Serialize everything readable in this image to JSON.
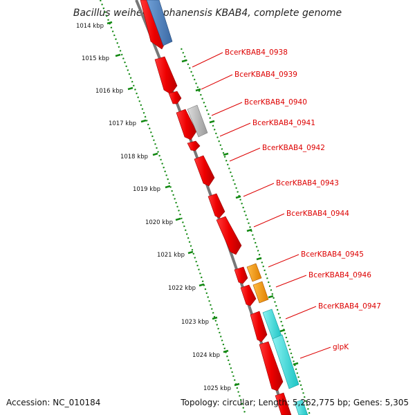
{
  "title": "Bacillus weihenstephanensis KBAB4, complete genome",
  "footer": {
    "accession": "Accession: NC_010184",
    "summary": "Topology: circular; Length: 5,262,775 bp; Genes: 5,305"
  },
  "ticks": [
    "1014 kbp",
    "1015 kbp",
    "1016 kbp",
    "1017 kbp",
    "1018 kbp",
    "1019 kbp",
    "1020 kbp",
    "1021 kbp",
    "1022 kbp",
    "1023 kbp",
    "1024 kbp",
    "1025 kbp"
  ],
  "genes": [
    "BcerKBAB4_0938",
    "BcerKBAB4_0939",
    "BcerKBAB4_0940",
    "BcerKBAB4_0941",
    "BcerKBAB4_0942",
    "BcerKBAB4_0943",
    "BcerKBAB4_0944",
    "BcerKBAB4_0945",
    "BcerKBAB4_0946",
    "BcerKBAB4_0947",
    "glpK"
  ],
  "colors": {
    "cds": "#ee0000",
    "tick": "#118811",
    "backbone": "#777777",
    "blue_feature": "#4a7fbf",
    "gray_feature": "#b8b8b8",
    "orange_feature": "#ff9900",
    "cyan_feature": "#33dddd",
    "label": "#dd0000"
  }
}
